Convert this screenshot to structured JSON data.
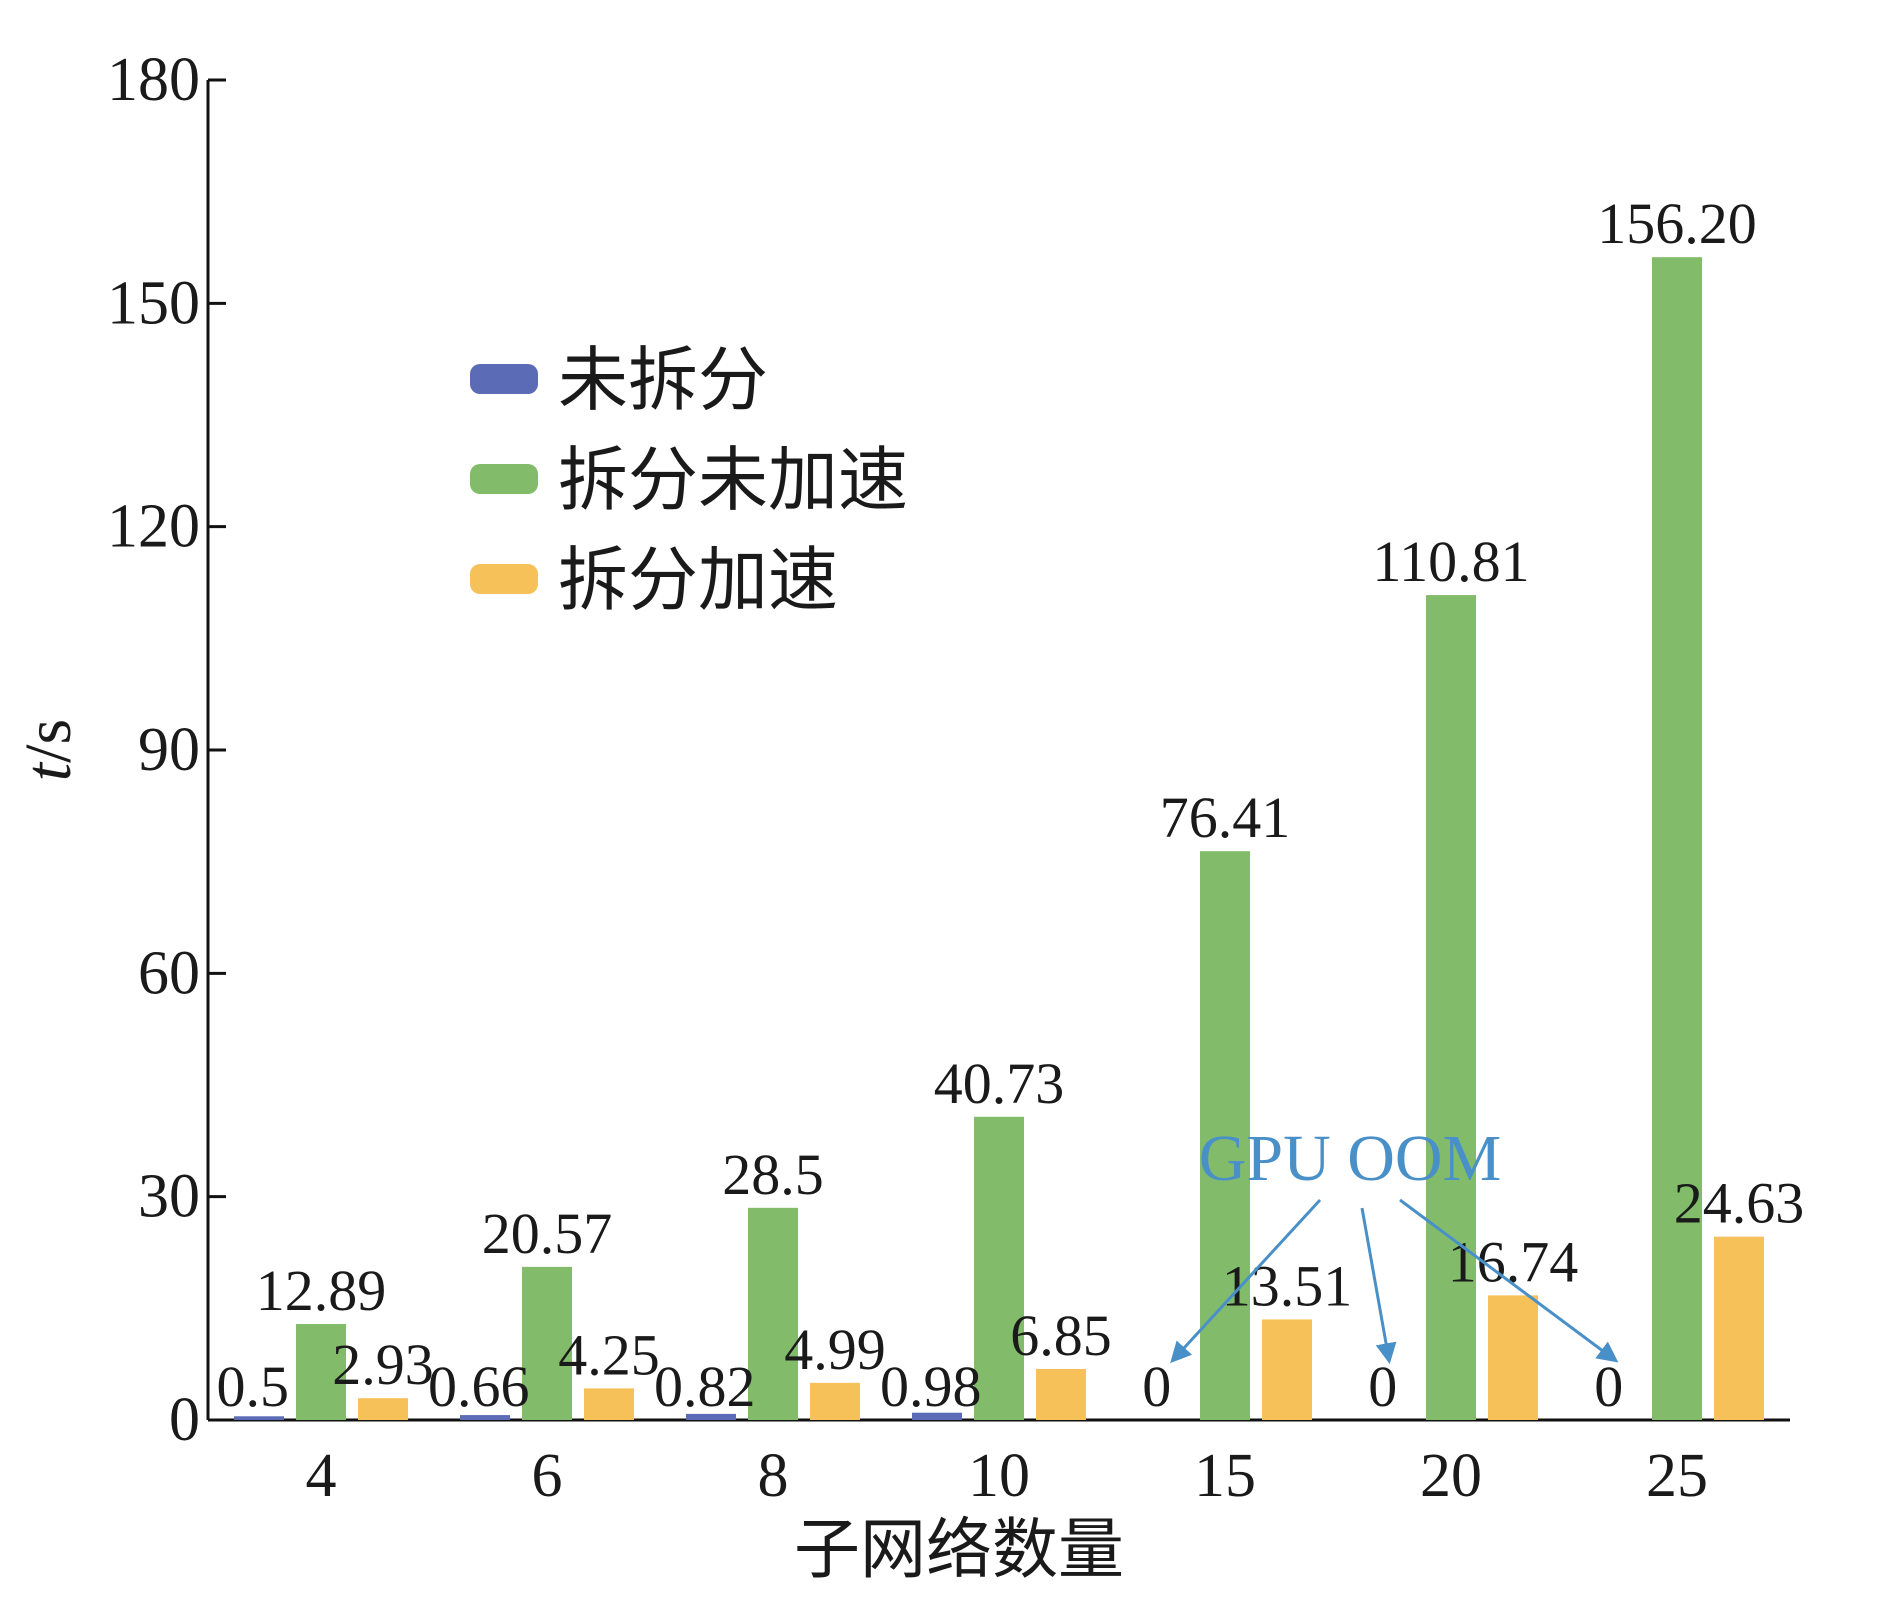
{
  "chart_data": {
    "type": "bar",
    "xlabel": "子网络数量",
    "ylabel_italic": "t",
    "ylabel_unit": "/s",
    "categories": [
      "4",
      "6",
      "8",
      "10",
      "15",
      "20",
      "25"
    ],
    "ylim": [
      0,
      180
    ],
    "yticks": [
      0,
      30,
      60,
      90,
      120,
      150,
      180
    ],
    "grid": false,
    "legend_position": "upper-left",
    "series": [
      {
        "name": "未拆分",
        "color": "#5b6bb5",
        "values": [
          0.5,
          0.66,
          0.82,
          0.98,
          0,
          0,
          0
        ],
        "labels": [
          "0.5",
          "0.66",
          "0.82",
          "0.98",
          "0",
          "0",
          "0"
        ]
      },
      {
        "name": "拆分未加速",
        "color": "#82bc6a",
        "values": [
          12.89,
          20.57,
          28.5,
          40.73,
          76.41,
          110.81,
          156.2
        ],
        "labels": [
          "12.89",
          "20.57",
          "28.5",
          "40.73",
          "76.41",
          "110.81",
          "156.20"
        ]
      },
      {
        "name": "拆分加速",
        "color": "#f7c15a",
        "values": [
          2.93,
          4.25,
          4.99,
          6.85,
          13.51,
          16.74,
          24.63
        ],
        "labels": [
          "2.93",
          "4.25",
          "4.99",
          "6.85",
          "13.51",
          "16.74",
          "24.63"
        ]
      }
    ],
    "annotation": {
      "text": "GPU OOM",
      "color": "#4a90c8",
      "targets": [
        "15",
        "20",
        "25"
      ]
    }
  }
}
